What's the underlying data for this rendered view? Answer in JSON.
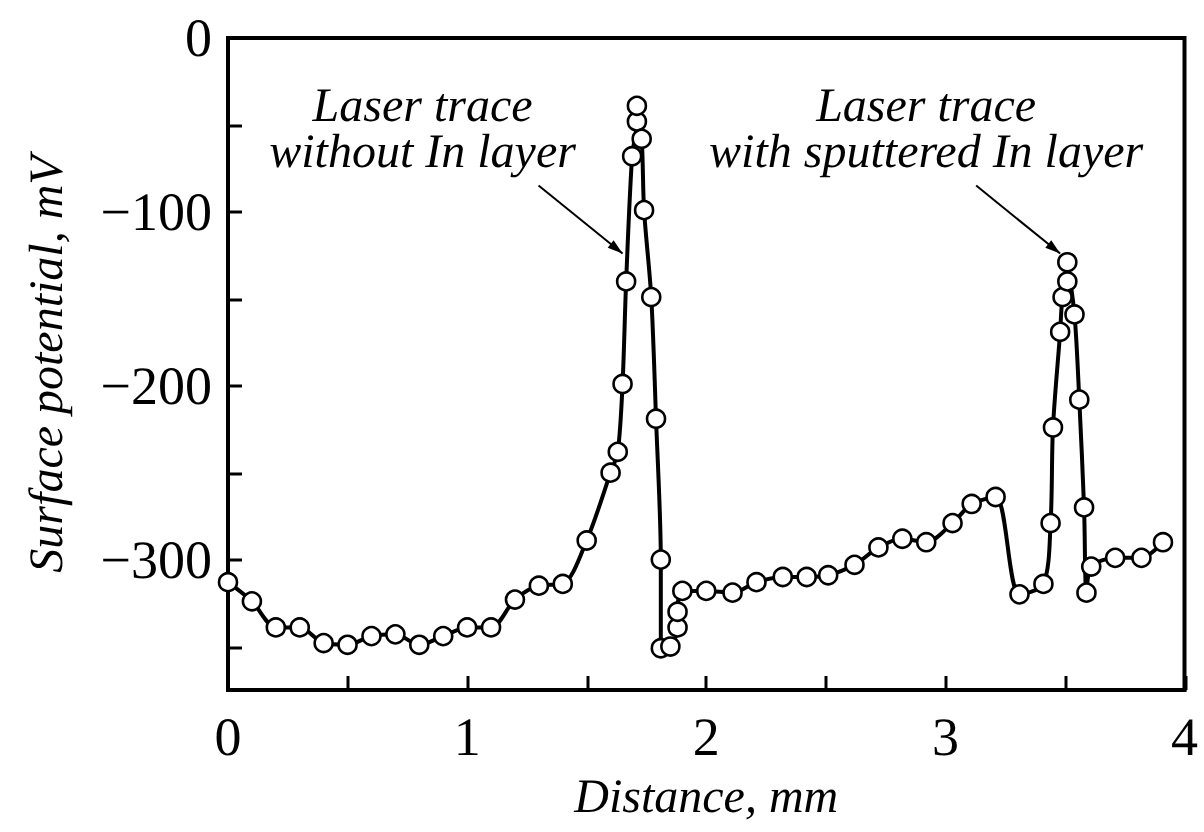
{
  "chart_data": {
    "type": "line",
    "xlabel": "Distance, mm",
    "ylabel": "Surface potential, mV",
    "x": [
      0,
      0.1,
      0.2,
      0.3,
      0.4,
      0.5,
      0.6,
      0.7,
      0.8,
      0.9,
      1.0,
      1.1,
      1.2,
      1.3,
      1.4,
      1.5,
      1.6,
      1.63,
      1.65,
      1.665,
      1.69,
      1.71,
      1.71,
      1.73,
      1.74,
      1.77,
      1.79,
      1.81,
      1.81,
      1.85,
      1.88,
      1.88,
      1.9,
      2.0,
      2.11,
      2.21,
      2.32,
      2.42,
      2.51,
      2.62,
      2.72,
      2.82,
      2.92,
      3.03,
      3.11,
      3.21,
      3.31,
      3.41,
      3.44,
      3.45,
      3.48,
      3.49,
      3.51,
      3.51,
      3.54,
      3.56,
      3.58,
      3.59,
      3.61,
      3.71,
      3.82,
      3.91
    ],
    "values": [
      -313,
      -324,
      -339,
      -339,
      -348,
      -349,
      -344,
      -343,
      -349,
      -344,
      -339,
      -339,
      -323,
      -315,
      -314,
      -289,
      -250,
      -238,
      -199,
      -140,
      -68,
      -48,
      -39,
      -58,
      -99,
      -149,
      -219,
      -300,
      -351,
      -350,
      -339,
      -330,
      -318,
      -318,
      -319,
      -313,
      -310,
      -310,
      -309,
      -303,
      -293,
      -288,
      -290,
      -279,
      -268,
      -264,
      -320,
      -314,
      -279,
      -224,
      -169,
      -149,
      -140,
      -129,
      -159,
      -208,
      -270,
      -319,
      -304,
      -299,
      -299,
      -290
    ],
    "color": "#000000",
    "marker": "circle",
    "line_style": "solid",
    "xlim": [
      0,
      4
    ],
    "xticks": [
      0,
      {
        "value": 0.5,
        "label": null
      },
      1,
      {
        "value": 1.5,
        "label": null
      },
      2,
      {
        "value": 2.5,
        "label": null
      },
      3,
      {
        "value": 3.5,
        "label": null
      },
      4
    ],
    "ylim": [
      -375,
      0
    ],
    "yticks": [
      0,
      {
        "value": -50,
        "label": null
      },
      {
        "value": -100,
        "label": "−100"
      },
      {
        "value": -150,
        "label": null
      },
      {
        "value": -200,
        "label": "−200"
      },
      {
        "value": -250,
        "label": null
      },
      {
        "value": -300,
        "label": "−300"
      },
      {
        "value": -350,
        "label": null
      }
    ],
    "grid": false,
    "annotations": [
      {
        "text": "Laser trace\nwithout In layer",
        "x": 1.65,
        "y": -124
      },
      {
        "text": "Laser trace\nwith sputtered In layer",
        "x": 3.48,
        "y": -124
      }
    ]
  }
}
